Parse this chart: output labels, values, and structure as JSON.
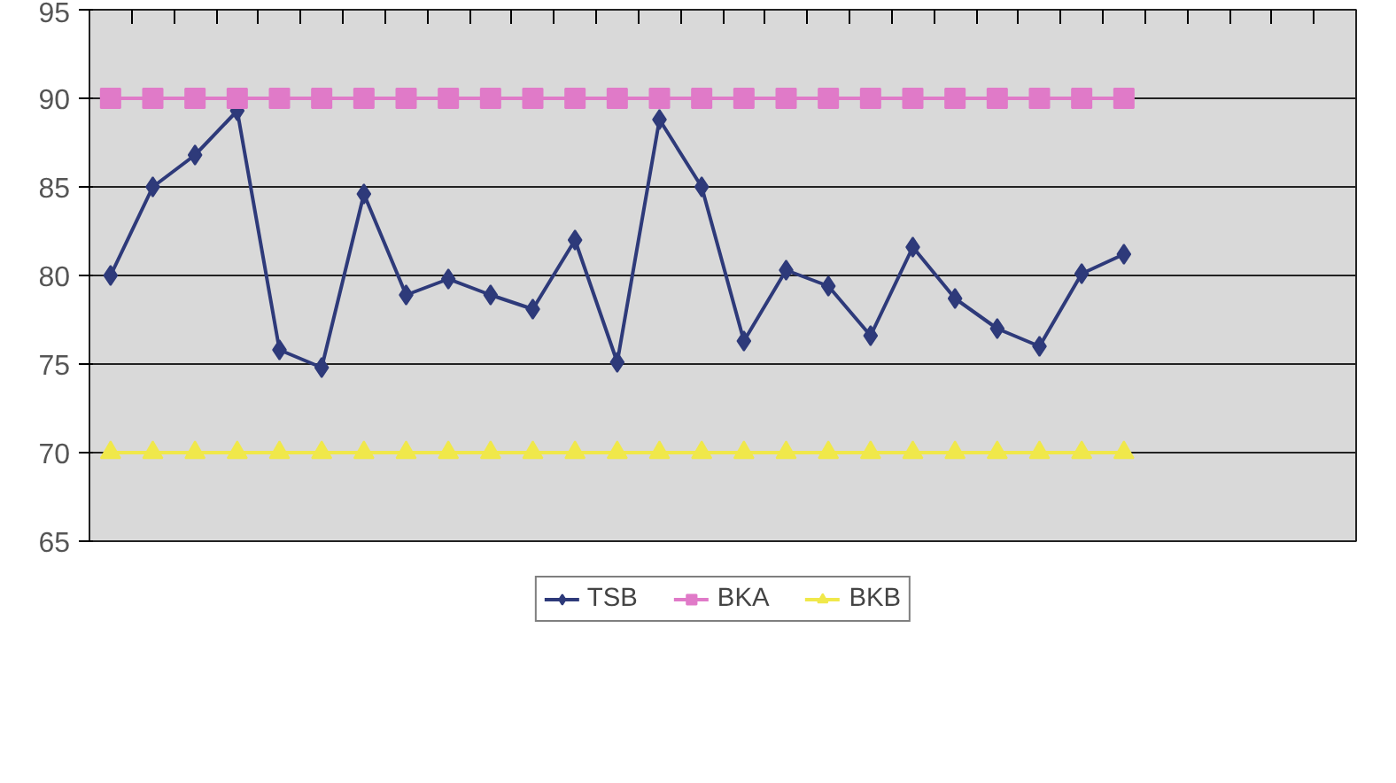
{
  "chart_data": {
    "type": "line",
    "categories": [
      null,
      null,
      null,
      null,
      null,
      null,
      null,
      null,
      null,
      null,
      null,
      null,
      null,
      null,
      null,
      null,
      null,
      null,
      null,
      null,
      null,
      null,
      null,
      null,
      null,
      null,
      null,
      null,
      null,
      null
    ],
    "series": [
      {
        "name": "TSB",
        "color": "#2e3a7a",
        "marker": "diamond",
        "values": [
          80,
          85,
          86.8,
          89.3,
          75.8,
          74.8,
          84.6,
          78.9,
          79.8,
          78.9,
          78.1,
          82,
          75.1,
          88.8,
          85,
          76.3,
          80.3,
          79.4,
          76.6,
          81.6,
          78.7,
          77,
          76,
          80.1,
          81.2,
          null,
          null,
          null,
          null,
          null
        ]
      },
      {
        "name": "BKA",
        "color": "#e07ac8",
        "marker": "square",
        "values": [
          90,
          90,
          90,
          90,
          90,
          90,
          90,
          90,
          90,
          90,
          90,
          90,
          90,
          90,
          90,
          90,
          90,
          90,
          90,
          90,
          90,
          90,
          90,
          90,
          90,
          null,
          null,
          null,
          null,
          null
        ]
      },
      {
        "name": "BKB",
        "color": "#f0e84a",
        "marker": "triangle",
        "values": [
          70,
          70,
          70,
          70,
          70,
          70,
          70,
          70,
          70,
          70,
          70,
          70,
          70,
          70,
          70,
          70,
          70,
          70,
          70,
          70,
          70,
          70,
          70,
          70,
          70,
          null,
          null,
          null,
          null,
          null
        ]
      }
    ],
    "ylim": [
      65,
      95
    ],
    "yticks": [
      65,
      70,
      75,
      80,
      85,
      90,
      95
    ],
    "grid": "y",
    "legend": "bottom",
    "tick_labels": "y"
  }
}
